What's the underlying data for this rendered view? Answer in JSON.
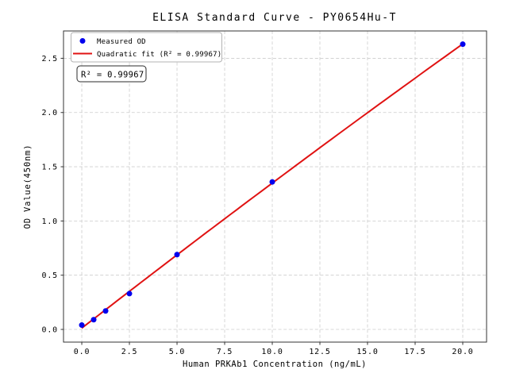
{
  "title": "ELISA Standard Curve - PY0654Hu-T",
  "colors": {
    "point": "#0000ee",
    "fit_line": "#e01212",
    "grid": "#cccccc",
    "text": "#000000"
  },
  "legend": {
    "items": [
      {
        "label": "Measured OD",
        "marker": "dot"
      },
      {
        "label": "Quadratic fit (R² = 0.99967)",
        "marker": "line"
      }
    ]
  },
  "annotation": {
    "text": "R² = 0.99967"
  },
  "chart_data": {
    "type": "scatter",
    "title": "ELISA Standard Curve - PY0654Hu-T",
    "xlabel": "Human PRKAb1 Concentration (ng/mL)",
    "ylabel": "OD Value(450nm)",
    "xlim": [
      -0.96,
      21.25
    ],
    "ylim": [
      -0.117,
      2.752
    ],
    "x_ticks": [
      0,
      2.5,
      5,
      7.5,
      10,
      12.5,
      15,
      17.5,
      20
    ],
    "x_tick_labels": [
      "0.0",
      "2.5",
      "5.0",
      "7.5",
      "10.0",
      "12.5",
      "15.0",
      "17.5",
      "20.0"
    ],
    "y_ticks": [
      0,
      0.5,
      1,
      1.5,
      2,
      2.5
    ],
    "y_tick_labels": [
      "0.0",
      "0.5",
      "1.0",
      "1.5",
      "2.0",
      "2.5"
    ],
    "grid": true,
    "legend_position": "upper left",
    "series": [
      {
        "name": "Measured OD",
        "type": "scatter",
        "x": [
          0,
          0.625,
          1.25,
          2.5,
          5,
          10,
          20
        ],
        "y": [
          0.04,
          0.09,
          0.17,
          0.33,
          0.69,
          1.36,
          2.63
        ]
      },
      {
        "name": "Quadratic fit (R² = 0.99967)",
        "type": "line",
        "fit": "quadratic",
        "r_squared": 0.99967
      }
    ]
  }
}
